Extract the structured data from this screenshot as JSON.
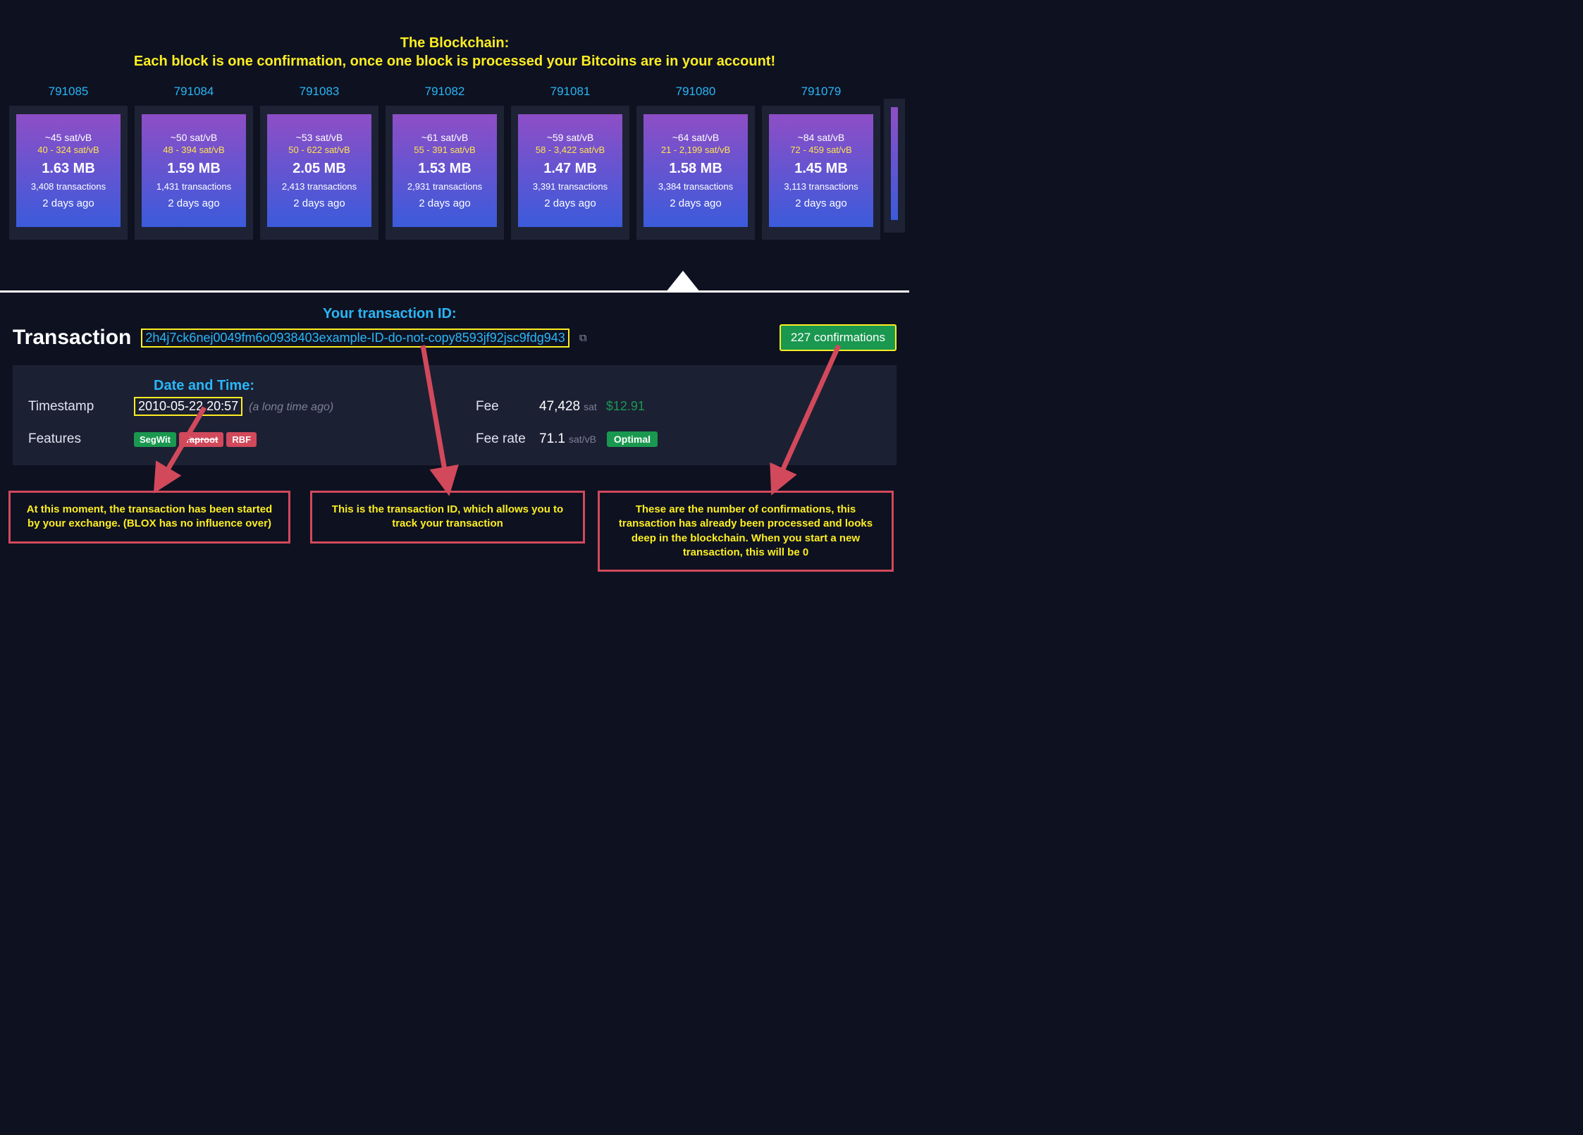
{
  "header": {
    "line1": "The Blockchain:",
    "line2": "Each block is one confirmation, once one block is processed your Bitcoins are in your account!"
  },
  "blocks": [
    {
      "num": "791085",
      "avg": "~45 sat/vB",
      "range": "40 - 324 sat/vB",
      "size": "1.63 MB",
      "txs": "3,408 transactions",
      "age": "2 days ago"
    },
    {
      "num": "791084",
      "avg": "~50 sat/vB",
      "range": "48 - 394 sat/vB",
      "size": "1.59 MB",
      "txs": "1,431 transactions",
      "age": "2 days ago"
    },
    {
      "num": "791083",
      "avg": "~53 sat/vB",
      "range": "50 - 622 sat/vB",
      "size": "2.05 MB",
      "txs": "2,413 transactions",
      "age": "2 days ago"
    },
    {
      "num": "791082",
      "avg": "~61 sat/vB",
      "range": "55 - 391 sat/vB",
      "size": "1.53 MB",
      "txs": "2,931 transactions",
      "age": "2 days ago"
    },
    {
      "num": "791081",
      "avg": "~59 sat/vB",
      "range": "58 - 3,422 sat/vB",
      "size": "1.47 MB",
      "txs": "3,391 transactions",
      "age": "2 days ago"
    },
    {
      "num": "791080",
      "avg": "~64 sat/vB",
      "range": "21 - 2,199 sat/vB",
      "size": "1.58 MB",
      "txs": "3,384 transactions",
      "age": "2 days ago"
    },
    {
      "num": "791079",
      "avg": "~84 sat/vB",
      "range": "72 - 459 sat/vB",
      "size": "1.45 MB",
      "txs": "3,113 transactions",
      "age": "2 days ago"
    }
  ],
  "block_gradient": {
    "top": "#8e4ec6",
    "bottom": "#3b5bdb"
  },
  "tx": {
    "heading": "Transaction",
    "txid_label": "Your transaction ID:",
    "txid": "2h4j7ck6nej0049fm6o0938403example-ID-do-not-copy8593jf92jsc9fdg943",
    "confirmations": "227 confirmations",
    "date_label": "Date and Time:",
    "ts_label": "Timestamp",
    "ts_value": "2010-05-22 20:57",
    "ts_ago": "(a long time ago)",
    "features_label": "Features",
    "features": [
      {
        "text": "SegWit",
        "cls": "pill-green"
      },
      {
        "text": "Taproot",
        "cls": "pill-red strike"
      },
      {
        "text": "RBF",
        "cls": "pill-red"
      }
    ],
    "fee_label": "Fee",
    "fee_sat": "47,428",
    "fee_unit": "sat",
    "fee_usd": "$12.91",
    "feerate_label": "Fee rate",
    "feerate_val": "71.1",
    "feerate_unit": "sat/vB",
    "optimal": "Optimal"
  },
  "callouts": {
    "c1": "At this moment, the transaction has been started by your exchange. (BLOX has no influence over)",
    "c2": "This is the transaction ID, which allows you to track your transaction",
    "c3": "These are the number of confirmations, this transaction has already been processed and looks deep in the blockchain. When you start a new transaction, this will be 0"
  },
  "colors": {
    "bg": "#0e1120",
    "accent_yellow": "#fcee21",
    "accent_cyan": "#29b6f6",
    "callout_border": "#d1495b",
    "badge_green": "#1a9850"
  }
}
